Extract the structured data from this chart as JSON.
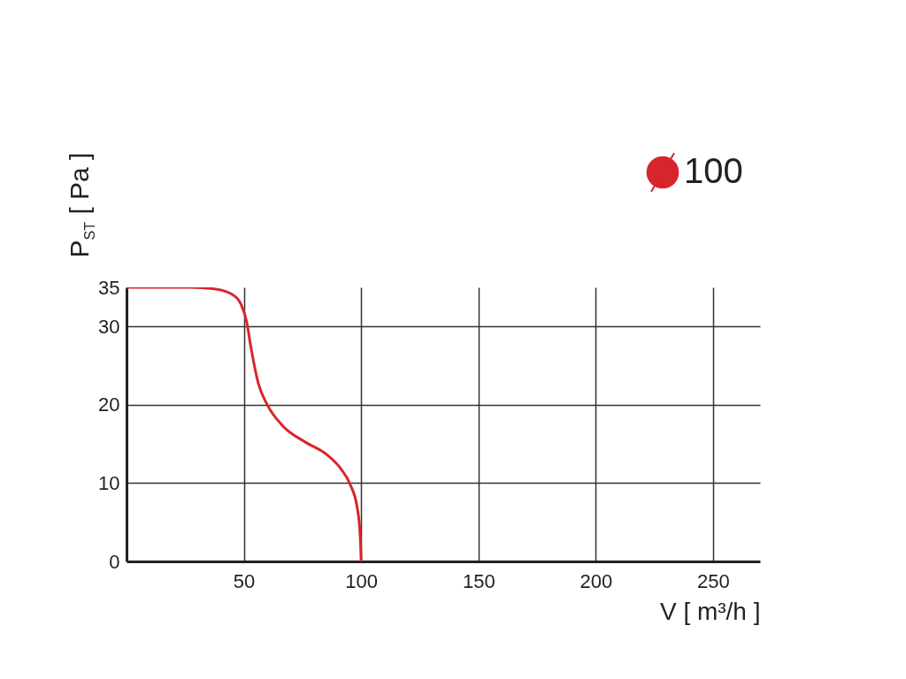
{
  "chart_data": {
    "type": "line",
    "xlabel": "V [ m³/h ]",
    "ylabel": "P$_{ST}$ [ Pa ]",
    "x": [
      0,
      27,
      37.4,
      45,
      48.7,
      51.2,
      53.1,
      56.2,
      60,
      66.3,
      76.4,
      85.1,
      91.4,
      95.2,
      98.3,
      99.6,
      100
    ],
    "series": [
      {
        "name": "100",
        "color": "#d7262b",
        "values": [
          35,
          35,
          34.8,
          34.1,
          32.9,
          30.6,
          27.2,
          22.7,
          20,
          17.4,
          15.2,
          13.7,
          11.8,
          9.9,
          6.9,
          3.2,
          0
        ]
      }
    ],
    "xlim": [
      0,
      270
    ],
    "xticks": [
      {
        "value": 0,
        "label": null
      },
      50,
      100,
      150,
      200,
      250
    ],
    "ylim": [
      0,
      35
    ],
    "yticks": [
      0,
      10,
      20,
      30,
      35
    ],
    "grid": true,
    "legend": "top right",
    "marker": "none",
    "line_style": "solid"
  }
}
